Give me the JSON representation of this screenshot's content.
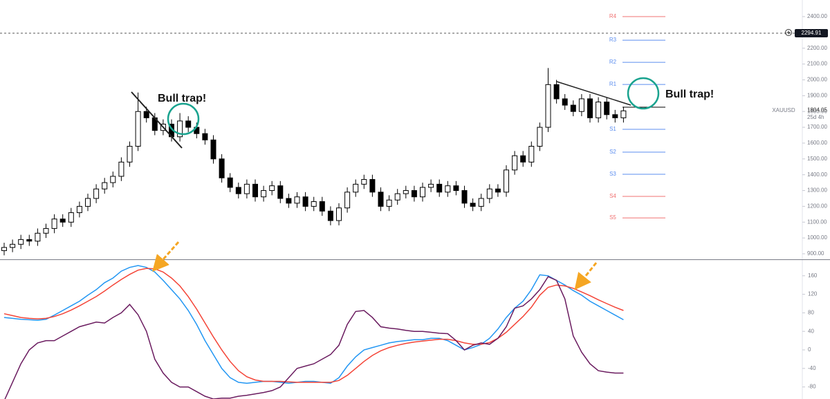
{
  "chart_data": [
    {
      "type": "candlestick",
      "symbol": "XAUUSD",
      "last_price": "1804.05",
      "countdown": "25d 4h",
      "price_line": {
        "value": 2294.91,
        "label": "2294.91"
      },
      "annotations": [
        "Bull trap!",
        "Bull trap!"
      ],
      "open": [
        920,
        940,
        960,
        990,
        980,
        1030,
        1060,
        1120,
        1100,
        1160,
        1200,
        1250,
        1310,
        1350,
        1390,
        1480,
        1580,
        1800,
        1760,
        1680,
        1720,
        1640,
        1740,
        1700,
        1660,
        1620,
        1500,
        1380,
        1320,
        1280,
        1340,
        1260,
        1300,
        1330,
        1250,
        1220,
        1260,
        1200,
        1230,
        1170,
        1110,
        1190,
        1290,
        1340,
        1370,
        1290,
        1200,
        1240,
        1280,
        1300,
        1260,
        1320,
        1340,
        1290,
        1330,
        1300,
        1220,
        1200,
        1250,
        1310,
        1290,
        1430,
        1520,
        1480,
        1580,
        1700,
        1970,
        1880,
        1840,
        1800,
        1880,
        1760,
        1860,
        1780,
        1760
      ],
      "high": [
        970,
        990,
        1020,
        1020,
        1060,
        1090,
        1150,
        1150,
        1190,
        1230,
        1280,
        1340,
        1380,
        1420,
        1510,
        1610,
        1920,
        1830,
        1790,
        1750,
        1750,
        1790,
        1770,
        1730,
        1690,
        1650,
        1530,
        1410,
        1350,
        1370,
        1370,
        1330,
        1360,
        1360,
        1280,
        1290,
        1290,
        1260,
        1260,
        1200,
        1220,
        1320,
        1370,
        1400,
        1400,
        1320,
        1270,
        1310,
        1330,
        1330,
        1350,
        1370,
        1370,
        1360,
        1360,
        1330,
        1250,
        1280,
        1340,
        1340,
        1460,
        1550,
        1550,
        1610,
        1730,
        2075,
        2000,
        1910,
        1870,
        1910,
        1910,
        1890,
        1890,
        1810,
        1830
      ],
      "low": [
        890,
        910,
        930,
        950,
        950,
        1000,
        1030,
        1070,
        1070,
        1130,
        1170,
        1220,
        1280,
        1320,
        1360,
        1450,
        1550,
        1730,
        1650,
        1650,
        1610,
        1610,
        1670,
        1630,
        1590,
        1470,
        1350,
        1290,
        1250,
        1250,
        1230,
        1230,
        1270,
        1220,
        1190,
        1190,
        1170,
        1170,
        1140,
        1080,
        1080,
        1160,
        1260,
        1310,
        1260,
        1170,
        1170,
        1210,
        1250,
        1230,
        1230,
        1290,
        1260,
        1260,
        1270,
        1190,
        1170,
        1170,
        1220,
        1260,
        1260,
        1400,
        1450,
        1450,
        1550,
        1670,
        1850,
        1810,
        1770,
        1770,
        1730,
        1730,
        1750,
        1730,
        1730
      ],
      "close": [
        940,
        960,
        990,
        980,
        1030,
        1060,
        1120,
        1100,
        1160,
        1200,
        1250,
        1310,
        1350,
        1390,
        1480,
        1580,
        1800,
        1760,
        1680,
        1720,
        1640,
        1740,
        1700,
        1660,
        1620,
        1500,
        1380,
        1320,
        1280,
        1340,
        1260,
        1300,
        1330,
        1250,
        1220,
        1260,
        1200,
        1230,
        1170,
        1110,
        1190,
        1290,
        1340,
        1370,
        1290,
        1200,
        1240,
        1280,
        1300,
        1260,
        1320,
        1340,
        1290,
        1330,
        1300,
        1220,
        1200,
        1250,
        1310,
        1290,
        1430,
        1520,
        1480,
        1580,
        1700,
        1970,
        1880,
        1840,
        1800,
        1880,
        1760,
        1860,
        1780,
        1760,
        1804
      ],
      "up_color": "#ffffff",
      "down_color": "#000000",
      "pivots": {
        "names": [
          "R4",
          "R3",
          "R2",
          "R1",
          null,
          "S1",
          "S2",
          "S3",
          "S4",
          "S5"
        ],
        "values": [
          2400,
          2251,
          2111,
          1971,
          1827,
          1687,
          1543,
          1403,
          1263,
          1127
        ],
        "colors": [
          "#f07070",
          "#5b8def",
          "#5b8def",
          "#5b8def",
          "#000000",
          "#5b8def",
          "#5b8def",
          "#5b8def",
          "#f07070",
          "#f07070"
        ]
      },
      "ylim": [
        865,
        2505
      ],
      "yticks": [
        {
          "value": 900,
          "label": "900.00"
        },
        {
          "value": 1000,
          "label": "1000.00"
        },
        {
          "value": 1100,
          "label": "1100.00"
        },
        {
          "value": 1200,
          "label": "1200.00"
        },
        {
          "value": 1300,
          "label": "1300.00"
        },
        {
          "value": 1400,
          "label": "1400.00"
        },
        {
          "value": 1500,
          "label": "1500.00"
        },
        {
          "value": 1600,
          "label": "1600.00"
        },
        {
          "value": 1700,
          "label": "1700.00"
        },
        {
          "value": 1800,
          "label": "1800.00"
        },
        {
          "value": 1900,
          "label": "1900.00"
        },
        {
          "value": 2000,
          "label": "2000.00"
        },
        {
          "value": 2100,
          "label": "2100.00"
        },
        {
          "value": 2200,
          "label": "2200.00"
        },
        {
          "value": 2300,
          "label": "2300.00"
        },
        {
          "value": 2400,
          "label": "2400.00"
        }
      ]
    },
    {
      "type": "line",
      "ylim": [
        -106,
        194
      ],
      "yticks": [
        160,
        120,
        80,
        40,
        0,
        -40,
        -80
      ],
      "series": [
        {
          "name": null,
          "color": "#2196f3",
          "values": [
            70,
            68,
            66,
            65,
            64,
            66,
            75,
            85,
            95,
            105,
            118,
            130,
            145,
            155,
            170,
            178,
            182,
            178,
            168,
            150,
            130,
            110,
            85,
            55,
            20,
            -10,
            -40,
            -60,
            -70,
            -72,
            -70,
            -68,
            -68,
            -70,
            -72,
            -70,
            -68,
            -68,
            -70,
            -72,
            -60,
            -35,
            -15,
            0,
            5,
            10,
            15,
            18,
            20,
            22,
            22,
            25,
            25,
            20,
            10,
            0,
            5,
            12,
            25,
            45,
            70,
            90,
            105,
            130,
            162,
            160,
            150,
            140,
            128,
            118,
            105,
            95,
            85,
            75,
            65
          ]
        },
        {
          "name": null,
          "color": "#f44336",
          "values": [
            78,
            74,
            70,
            68,
            67,
            68,
            72,
            78,
            86,
            95,
            105,
            115,
            127,
            140,
            152,
            163,
            172,
            176,
            175,
            168,
            155,
            138,
            115,
            88,
            58,
            28,
            0,
            -25,
            -45,
            -58,
            -65,
            -68,
            -68,
            -68,
            -69,
            -70,
            -70,
            -70,
            -70,
            -70,
            -66,
            -55,
            -40,
            -25,
            -12,
            -2,
            5,
            10,
            14,
            17,
            19,
            21,
            23,
            23,
            20,
            15,
            12,
            12,
            16,
            25,
            38,
            55,
            72,
            92,
            118,
            135,
            140,
            138,
            133,
            125,
            117,
            108,
            100,
            92,
            85
          ]
        },
        {
          "name": null,
          "color": "#6a1b5f",
          "values": [
            -110,
            -70,
            -30,
            0,
            15,
            20,
            20,
            30,
            40,
            50,
            55,
            60,
            58,
            70,
            80,
            98,
            76,
            40,
            -20,
            -50,
            -70,
            -80,
            -80,
            -90,
            -100,
            -106,
            -104,
            -104,
            -100,
            -98,
            -95,
            -92,
            -88,
            -80,
            -60,
            -40,
            -35,
            -30,
            -20,
            -10,
            10,
            55,
            83,
            85,
            70,
            50,
            47,
            45,
            42,
            40,
            40,
            38,
            36,
            35,
            20,
            0,
            10,
            15,
            12,
            25,
            50,
            90,
            95,
            110,
            130,
            158,
            150,
            110,
            30,
            -5,
            -30,
            -45,
            -48,
            -50,
            -50
          ]
        }
      ]
    }
  ]
}
